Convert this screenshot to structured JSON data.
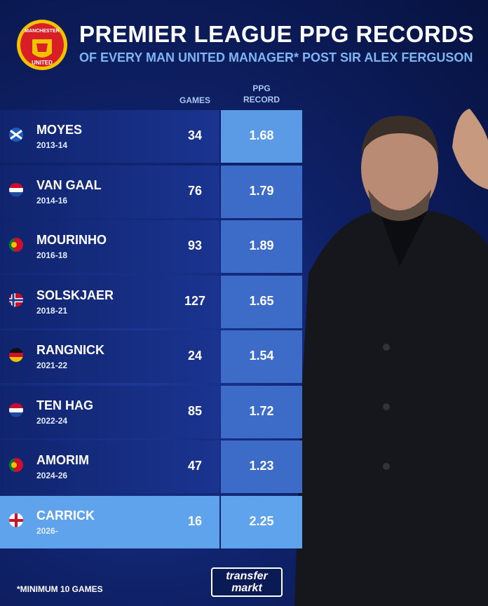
{
  "header": {
    "title": "PREMIER LEAGUE PPG RECORDS",
    "subtitle": "OF EVERY MAN UNITED MANAGER* POST SIR ALEX FERGUSON"
  },
  "logo": {
    "top": "MANCHESTER",
    "bottom": "UNITED"
  },
  "table": {
    "columns": [
      "GAMES",
      "PPG RECORD"
    ],
    "rows": [
      {
        "name": "MOYES",
        "years": "2013-14",
        "games": 34,
        "ppg": 1.68
      },
      {
        "name": "VAN GAAL",
        "years": "2014-16",
        "games": 76,
        "ppg": 1.79
      },
      {
        "name": "MOURINHO",
        "years": "2016-18",
        "games": 93,
        "ppg": 1.89
      },
      {
        "name": "SOLSKJAER",
        "years": "2018-21",
        "games": 127,
        "ppg": 1.65
      },
      {
        "name": "RANGNICK",
        "years": "2021-22",
        "games": 24,
        "ppg": 1.54
      },
      {
        "name": "TEN HAG",
        "years": "2022-24",
        "games": 85,
        "ppg": 1.72
      },
      {
        "name": "AMORIM",
        "years": "2024-26",
        "games": 47,
        "ppg": 1.23
      },
      {
        "name": "CARRICK",
        "years": "2026-",
        "games": 16,
        "ppg": 2.25
      }
    ]
  },
  "footnote": "*MINIMUM 10 GAMES",
  "brand": {
    "line1": "transfer",
    "line2": "markt"
  }
}
